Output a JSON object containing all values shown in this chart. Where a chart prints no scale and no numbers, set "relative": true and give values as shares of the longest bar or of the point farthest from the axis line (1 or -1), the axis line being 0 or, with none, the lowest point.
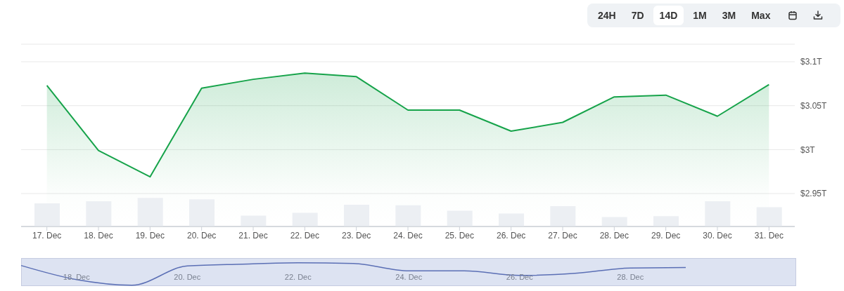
{
  "chart_data": [
    {
      "type": "area",
      "categories": [
        "17. Dec",
        "18. Dec",
        "19. Dec",
        "20. Dec",
        "21. Dec",
        "22. Dec",
        "23. Dec",
        "24. Dec",
        "25. Dec",
        "26. Dec",
        "27. Dec",
        "28. Dec",
        "29. Dec",
        "30. Dec",
        "31. Dec"
      ],
      "series": [
        {
          "color": "#16a34a",
          "values": [
            3.073,
            2.999,
            2.969,
            3.07,
            3.08,
            3.087,
            3.083,
            3.045,
            3.045,
            3.021,
            3.031,
            3.06,
            3.062,
            3.038,
            3.074
          ]
        }
      ],
      "ylim": [
        2.9125,
        3.12
      ],
      "yticks": [
        {
          "value": 2.95,
          "label": "$2.95T"
        },
        {
          "value": 3,
          "label": "$3T"
        },
        {
          "value": 3.05,
          "label": "$3.05T"
        },
        {
          "value": 3.1,
          "label": "$3.1T"
        }
      ],
      "grid": "y",
      "annotations": [
        "24H",
        "7D",
        "14D",
        "1M",
        "3M",
        "Max"
      ]
    },
    {
      "type": "bar",
      "relative": true,
      "categories": [
        null,
        null,
        null,
        null,
        null,
        null,
        null,
        null,
        null,
        null,
        null,
        null,
        null,
        null,
        null
      ],
      "series": [
        {
          "color": "#eceff3",
          "values": [
            0.81,
            0.88,
            1,
            0.95,
            0.38,
            0.48,
            0.76,
            0.74,
            0.55,
            0.45,
            0.71,
            0.33,
            0.36,
            0.88,
            0.67
          ]
        }
      ],
      "tick_labels": false
    },
    {
      "type": "line",
      "relative": true,
      "categories": [
        null,
        "18. Dec",
        null,
        "20. Dec",
        null,
        "22. Dec",
        null,
        "24. Dec",
        null,
        "26. Dec",
        null,
        "28. Dec",
        null
      ],
      "series": [
        {
          "color": "#5b6fb5",
          "values": [
            0.88,
            0.25,
            0,
            0.86,
            0.94,
            1,
            0.97,
            0.64,
            0.64,
            0.44,
            0.53,
            0.77,
            0.79
          ]
        }
      ]
    }
  ]
}
